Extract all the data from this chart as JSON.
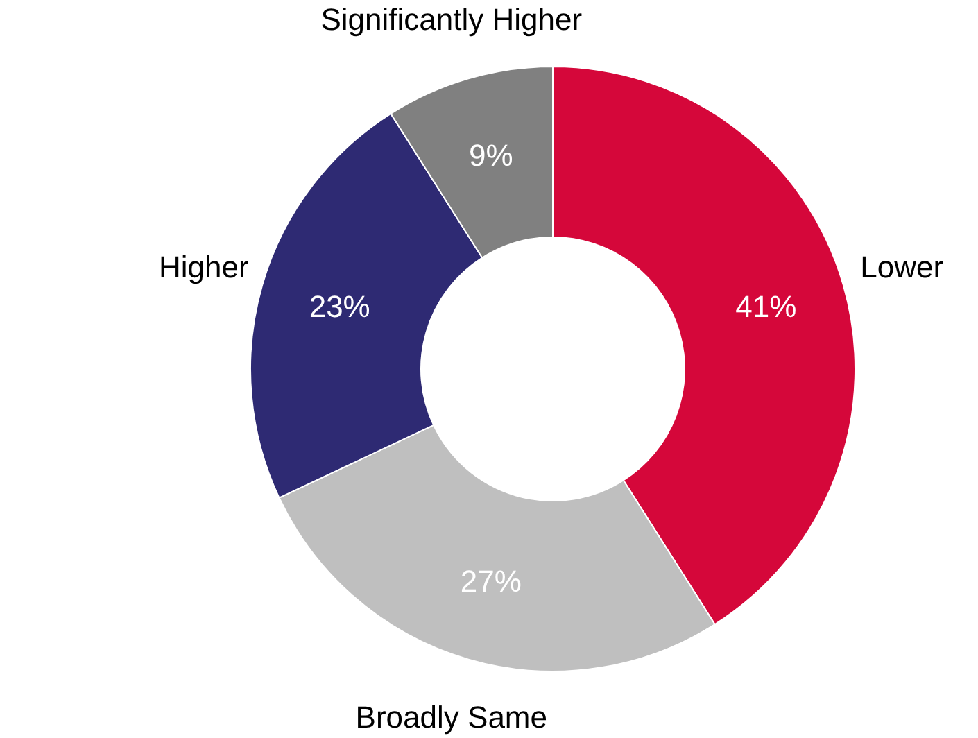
{
  "chart_data": {
    "type": "donut",
    "categories": [
      "Lower",
      "Broadly Same",
      "Higher",
      "Significantly Higher"
    ],
    "values": [
      41,
      27,
      23,
      9
    ],
    "value_labels": [
      "41%",
      "27%",
      "23%",
      "9%"
    ],
    "colors": [
      "#d5073a",
      "#bfbfbf",
      "#2e2a73",
      "#808080"
    ]
  }
}
